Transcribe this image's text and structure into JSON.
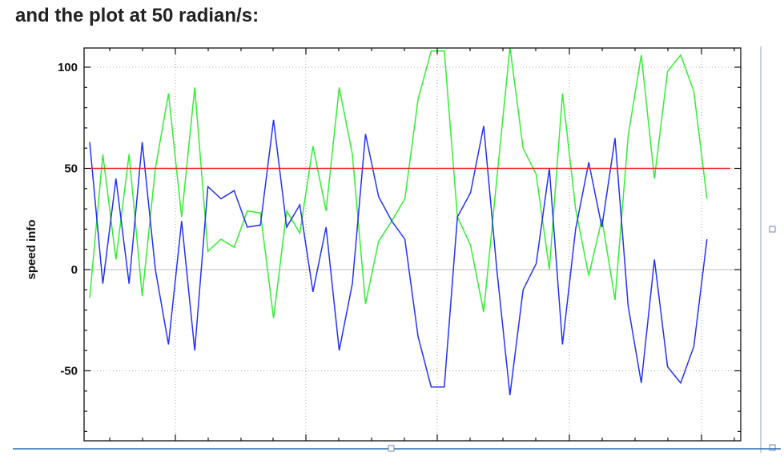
{
  "heading": "and the plot at 50 radian/s:",
  "chart_data": {
    "type": "line",
    "title": "",
    "xlabel": "",
    "ylabel": "speed info",
    "xlim": [
      0,
      49
    ],
    "ylim": [
      -85,
      110
    ],
    "yticks": [
      -50,
      0,
      50,
      100
    ],
    "ytick_labels": [
      "-50",
      "0",
      "50",
      "100"
    ],
    "grid": true,
    "legend": "none",
    "series": [
      {
        "color": "#33ee33",
        "x": [
          0,
          1,
          2,
          3,
          4,
          5,
          6,
          7,
          8,
          9,
          10,
          11,
          12,
          13,
          14,
          15,
          16,
          17,
          18,
          19,
          20,
          21,
          22,
          23,
          24,
          25,
          26,
          27,
          28,
          29,
          30,
          31,
          32,
          33,
          34,
          35,
          36,
          37,
          38,
          39,
          40,
          41,
          42,
          43,
          44,
          45,
          46,
          47,
          48,
          49
        ],
        "y": [
          -14,
          57,
          5,
          57,
          -13,
          50,
          87,
          26,
          90,
          9,
          15,
          11,
          29,
          28,
          -24,
          29,
          18,
          61,
          29,
          90,
          57,
          -17,
          14,
          24,
          35,
          84,
          108,
          108,
          26,
          12,
          -21,
          45,
          110,
          60,
          47,
          0,
          87,
          30,
          -3,
          25,
          -15,
          66,
          106,
          45,
          98,
          106,
          88,
          35,
          35,
          35
        ]
      },
      {
        "color": "#2233ee",
        "x": [
          0,
          1,
          2,
          3,
          4,
          5,
          6,
          7,
          8,
          9,
          10,
          11,
          12,
          13,
          14,
          15,
          16,
          17,
          18,
          19,
          20,
          21,
          22,
          23,
          24,
          25,
          26,
          27,
          28,
          29,
          30,
          31,
          32,
          33,
          34,
          35,
          36,
          37,
          38,
          39,
          40,
          41,
          42,
          43,
          44,
          45,
          46,
          47,
          48,
          49
        ],
        "y": [
          63,
          -7,
          45,
          -7,
          63,
          0,
          -37,
          24,
          -40,
          41,
          35,
          39,
          21,
          22,
          74,
          21,
          32,
          -11,
          21,
          -40,
          -7,
          67,
          36,
          24,
          15,
          -33,
          -58,
          -58,
          26,
          38,
          71,
          0,
          -62,
          -10,
          3,
          50,
          -37,
          20,
          53,
          21,
          65,
          -18,
          -56,
          5,
          -48,
          -56,
          -38,
          15,
          15,
          15
        ]
      },
      {
        "color": "#ee2222",
        "x": [
          0,
          49
        ],
        "y": [
          50,
          50
        ]
      }
    ]
  }
}
